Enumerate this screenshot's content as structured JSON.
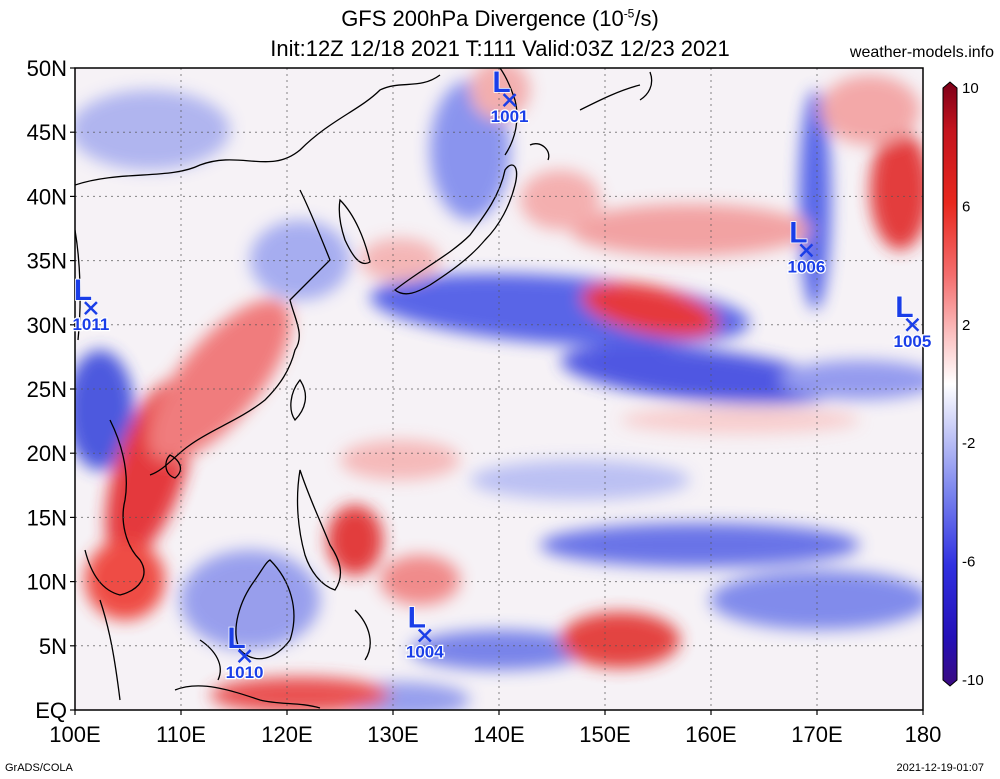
{
  "title": {
    "line1_prefix": "GFS 200hPa Divergence (10",
    "line1_sup": "-5",
    "line1_suffix": "/s)",
    "line2": "Init:12Z 12/18 2021 T:111 Valid:03Z 12/23 2021"
  },
  "site": "weather-models.info",
  "footer": {
    "left": "GrADS/COLA",
    "right": "2021-12-19-01:07"
  },
  "map": {
    "lon_range": [
      100,
      180
    ],
    "lat_range": [
      0,
      50
    ],
    "lat_labels": [
      "50N",
      "45N",
      "40N",
      "35N",
      "30N",
      "25N",
      "20N",
      "15N",
      "10N",
      "5N",
      "EQ"
    ],
    "lat_values": [
      50,
      45,
      40,
      35,
      30,
      25,
      20,
      15,
      10,
      5,
      0
    ],
    "lon_labels": [
      "100E",
      "110E",
      "120E",
      "130E",
      "140E",
      "150E",
      "160E",
      "170E",
      "180"
    ],
    "lon_values": [
      100,
      110,
      120,
      130,
      140,
      150,
      160,
      170,
      180
    ],
    "low_symbol": "L",
    "lows": [
      {
        "lon": 141.0,
        "lat": 47.5,
        "value": "1001"
      },
      {
        "lon": 101.5,
        "lat": 31.3,
        "value": "1011"
      },
      {
        "lon": 169.0,
        "lat": 35.8,
        "value": "1006"
      },
      {
        "lon": 179.0,
        "lat": 30.0,
        "value": "1005"
      },
      {
        "lon": 116.0,
        "lat": 4.2,
        "value": "1010"
      },
      {
        "lon": 133.0,
        "lat": 5.8,
        "value": "1004"
      }
    ]
  },
  "colorbar": {
    "labels": [
      "10",
      "6",
      "2",
      "-2",
      "-6",
      "-10"
    ],
    "values": [
      10,
      6,
      2,
      -2,
      -6,
      -10
    ],
    "range": [
      -10,
      10
    ],
    "colors": {
      "max": "#7d0019",
      "strong_pos": "#e11e1e",
      "pos": "#f5a0a0",
      "zero": "#ffffff",
      "neg": "#a0a8f0",
      "strong_neg": "#2020d8",
      "min": "#3a0a80"
    }
  },
  "low_color": "#1a3ee8"
}
